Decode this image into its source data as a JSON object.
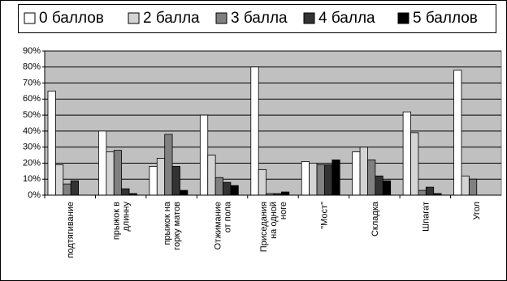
{
  "chart_data": {
    "type": "bar",
    "categories": [
      "подтягивание",
      "прыжок в\nдлинну",
      "прыжок на\nгорку матов",
      "Отжимание\nот пола",
      "Приседания\nна одной\nноге",
      "\"Мост\"",
      "Складка",
      "Шпагат",
      "Угол"
    ],
    "series": [
      {
        "name": "0 баллов",
        "color": "#ffffff",
        "values": [
          65,
          40,
          18,
          50,
          80,
          21,
          27,
          52,
          78
        ]
      },
      {
        "name": "2 балла",
        "color": "#d4d4d4",
        "values": [
          19,
          27,
          23,
          25,
          16,
          20,
          30,
          39,
          12
        ]
      },
      {
        "name": "3 балла",
        "color": "#808080",
        "values": [
          7,
          28,
          38,
          11,
          1,
          19,
          22,
          3,
          10
        ]
      },
      {
        "name": "4 балла",
        "color": "#333333",
        "values": [
          9,
          4,
          18,
          8,
          1,
          19,
          12,
          5,
          0
        ]
      },
      {
        "name": "5 баллов",
        "color": "#000000",
        "values": [
          0,
          1,
          3,
          6,
          2,
          22,
          9,
          1,
          0
        ]
      }
    ],
    "ylim": [
      0,
      90
    ],
    "yticks": [
      {
        "value": 0,
        "label": "0%"
      },
      {
        "value": 10,
        "label": "10%"
      },
      {
        "value": 20,
        "label": "20%"
      },
      {
        "value": 30,
        "label": "30%"
      },
      {
        "value": 40,
        "label": "40%"
      },
      {
        "value": 50,
        "label": "50%"
      },
      {
        "value": 60,
        "label": "60%"
      },
      {
        "value": 70,
        "label": "70%"
      },
      {
        "value": 80,
        "label": "80%"
      },
      {
        "value": 90,
        "label": "90%"
      }
    ],
    "grid": true,
    "plot_background": "#c0c0c0",
    "legend": "top"
  }
}
